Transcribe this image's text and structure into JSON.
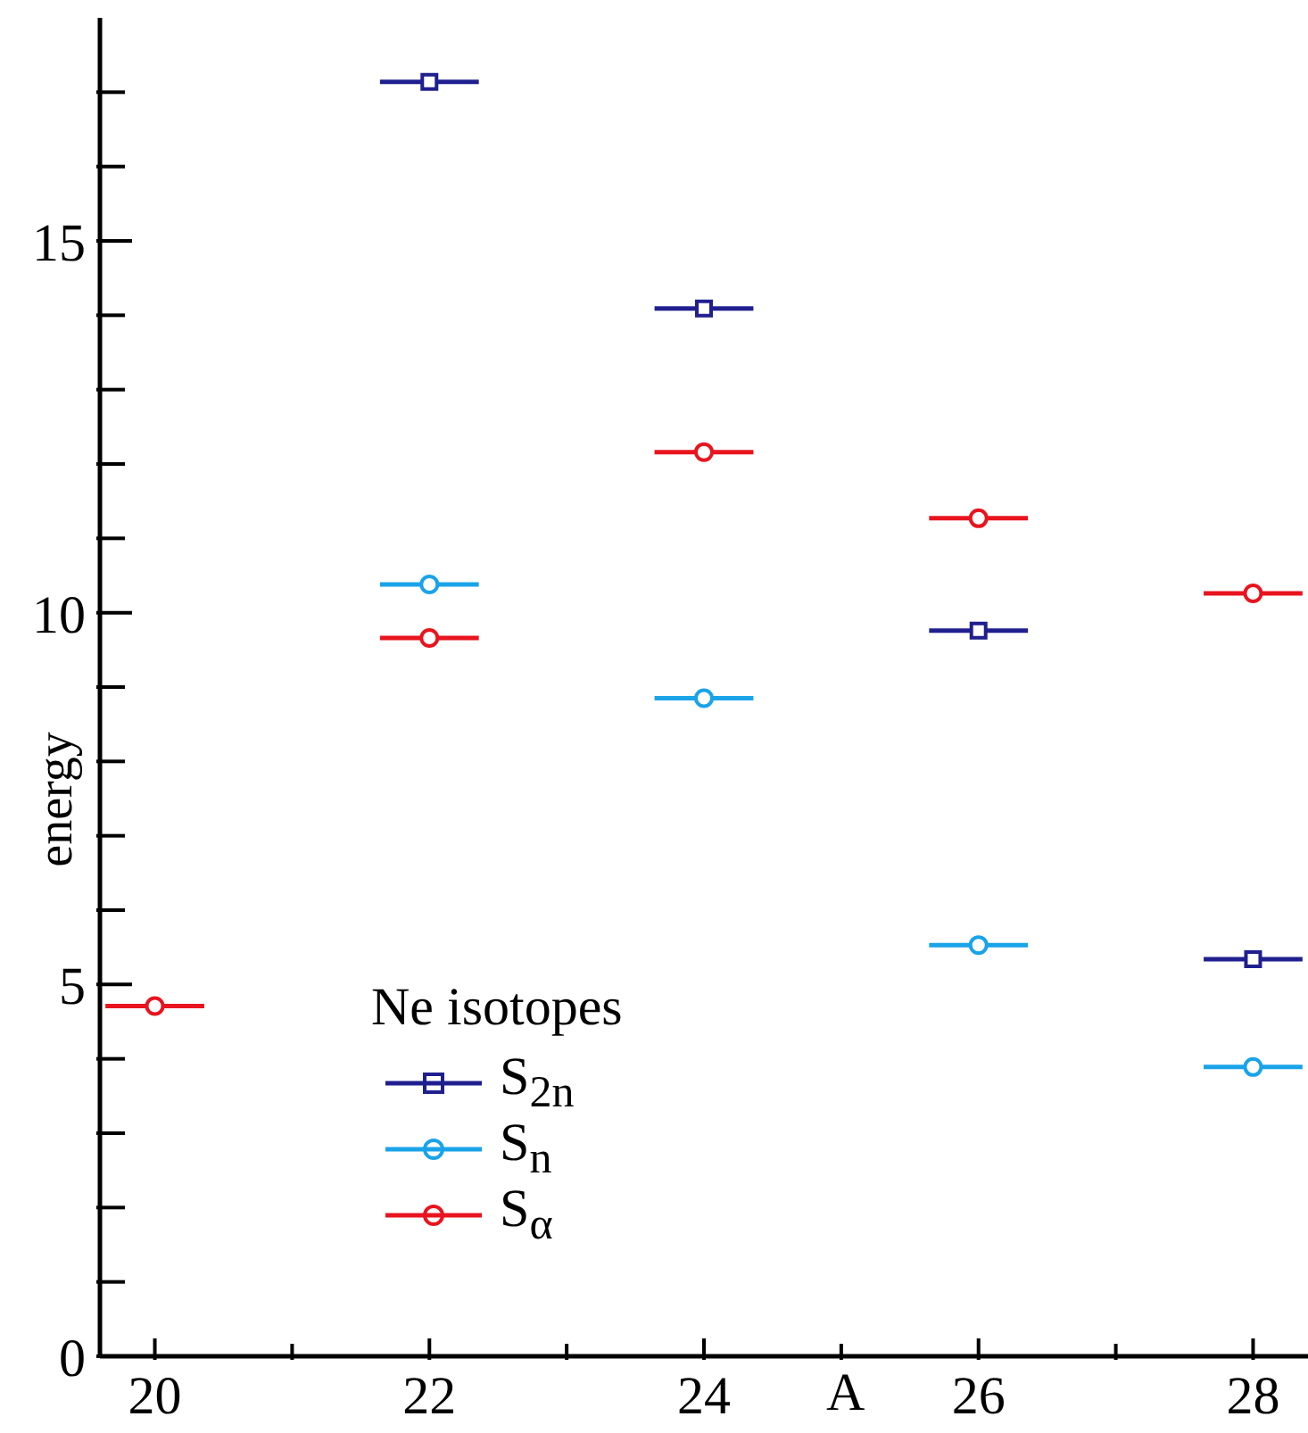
{
  "chart_data": {
    "type": "scatter",
    "xlabel": "A",
    "ylabel": "energy",
    "legend_title": "Ne isotopes",
    "legend": "bottom left",
    "line_style": "solid",
    "x": [
      20,
      22,
      24,
      26,
      28
    ],
    "xlim": [
      19.6,
      28.4
    ],
    "ylim": [
      0,
      18
    ],
    "xticks": [
      20,
      {
        "value": 21,
        "label": null
      },
      22,
      {
        "value": 23,
        "label": null
      },
      24,
      {
        "value": 25,
        "label": null
      },
      26,
      {
        "value": 27,
        "label": null
      },
      28
    ],
    "yticks": [
      0,
      {
        "value": 1,
        "label": null
      },
      {
        "value": 2,
        "label": null
      },
      {
        "value": 3,
        "label": null
      },
      {
        "value": 4,
        "label": null
      },
      5,
      {
        "value": 6,
        "label": null
      },
      {
        "value": 7,
        "label": null
      },
      {
        "value": 8,
        "label": null
      },
      {
        "value": 9,
        "label": null
      },
      10,
      {
        "value": 11,
        "label": null
      },
      {
        "value": 12,
        "label": null
      },
      {
        "value": 13,
        "label": null
      },
      {
        "value": 14,
        "label": null
      },
      15,
      {
        "value": 16,
        "label": null
      },
      {
        "value": 17,
        "label": null
      }
    ],
    "grid": false,
    "series": [
      {
        "name": "S$_{2n}$",
        "color": "#1f1f8f",
        "marker": "square",
        "values": [
          null,
          17.14,
          14.09,
          9.76,
          5.34
        ],
        "xerrors": [
          null,
          0.36,
          0.36,
          0.36,
          0.36
        ]
      },
      {
        "name": "S$_{n}$",
        "color": "#1aa3e8",
        "marker": "circle",
        "values": [
          null,
          10.38,
          8.85,
          5.53,
          3.89
        ],
        "xerrors": [
          null,
          0.36,
          0.36,
          0.36,
          0.36
        ]
      },
      {
        "name": "S$_{α}$",
        "color": "#e8141e",
        "marker": "circle",
        "values": [
          4.71,
          9.66,
          12.16,
          11.27,
          10.26
        ],
        "xerrors": [
          0.36,
          0.36,
          0.36,
          0.36,
          0.36
        ]
      }
    ]
  }
}
